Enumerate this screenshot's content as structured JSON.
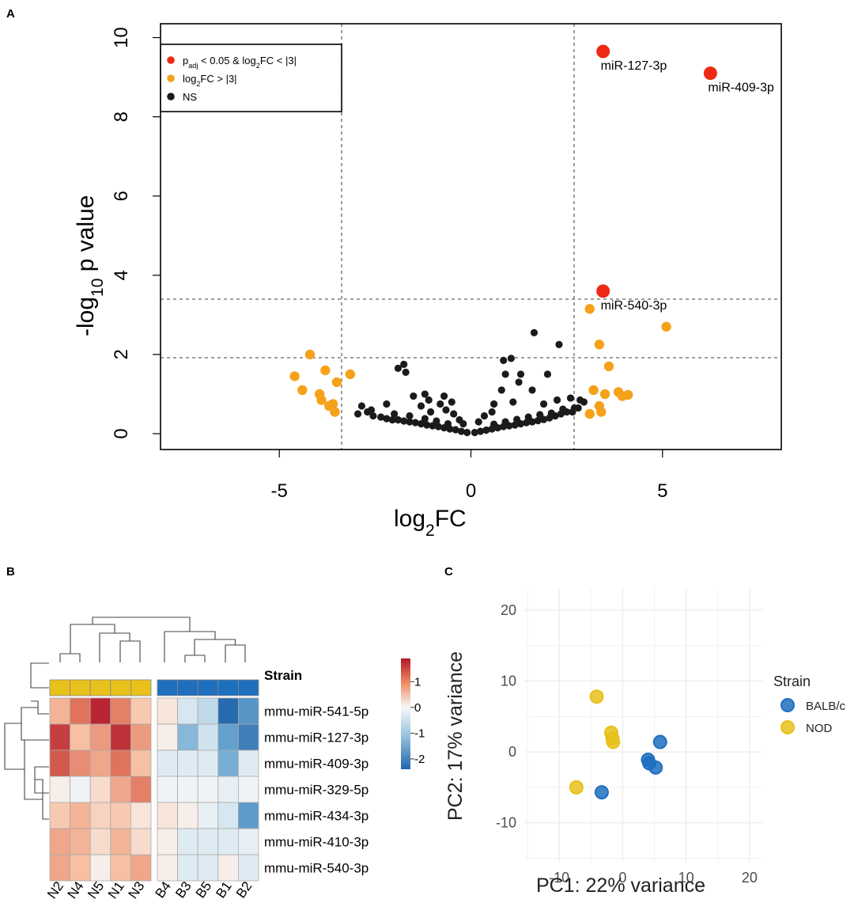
{
  "panel_labels": {
    "a": "A",
    "b": "B",
    "c": "C"
  },
  "chart_data": [
    {
      "id": "volcano",
      "type": "scatter",
      "title": "",
      "xlabel": "log2FC",
      "ylabel": "-log10 p value",
      "xlim": [
        -8.1,
        8.1
      ],
      "ylim": [
        -0.4,
        10.35
      ],
      "xticks": [
        -5,
        0,
        5
      ],
      "yticks": [
        0,
        2,
        4,
        6,
        8,
        10
      ],
      "thresholds": {
        "x": [
          -3,
          3
        ],
        "y": [
          2,
          3.5
        ]
      },
      "legend": {
        "placement": "top-left",
        "entries": [
          {
            "key": "sig",
            "label": "padj < 0.05 & log2FC < |3|",
            "color": "#ee2a14"
          },
          {
            "key": "fc",
            "label": "log2FC > |3|",
            "color": "#f5a21a"
          },
          {
            "key": "ns",
            "label": "NS",
            "color": "#1b1b1b"
          }
        ]
      },
      "annotations": [
        {
          "text": "miR-127-3p",
          "x": 3.45,
          "y": 9.65
        },
        {
          "text": "miR-409-3p",
          "x": 6.25,
          "y": 9.1
        },
        {
          "text": "miR-540-3p",
          "x": 3.45,
          "y": 3.6
        }
      ],
      "series": [
        {
          "name": "padj < 0.05 & log2FC < |3|",
          "color": "#ee2a14",
          "points": [
            [
              3.45,
              9.65
            ],
            [
              6.25,
              9.1
            ],
            [
              3.45,
              3.6
            ]
          ]
        },
        {
          "name": "log2FC > |3|",
          "color": "#f5a21a",
          "points": [
            [
              3.1,
              3.15
            ],
            [
              3.35,
              2.25
            ],
            [
              5.1,
              2.7
            ],
            [
              3.6,
              1.7
            ],
            [
              3.2,
              1.1
            ],
            [
              3.5,
              1.0
            ],
            [
              3.85,
              1.05
            ],
            [
              4.1,
              0.98
            ],
            [
              3.35,
              0.7
            ],
            [
              3.1,
              0.5
            ],
            [
              3.4,
              0.55
            ],
            [
              3.95,
              0.95
            ],
            [
              -4.2,
              2.0
            ],
            [
              -4.6,
              1.45
            ],
            [
              -4.4,
              1.1
            ],
            [
              -3.8,
              1.6
            ],
            [
              -3.5,
              1.3
            ],
            [
              -3.95,
              1.0
            ],
            [
              -3.9,
              0.85
            ],
            [
              -3.7,
              0.7
            ],
            [
              -3.55,
              0.55
            ],
            [
              -3.15,
              1.5
            ],
            [
              -3.6,
              0.75
            ]
          ]
        },
        {
          "name": "NS",
          "color": "#1b1b1b",
          "points": [
            [
              -2.95,
              0.5
            ],
            [
              -2.85,
              0.7
            ],
            [
              -2.7,
              0.55
            ],
            [
              -2.55,
              0.45
            ],
            [
              -2.35,
              0.42
            ],
            [
              -2.2,
              0.38
            ],
            [
              -2.05,
              0.35
            ],
            [
              -1.9,
              0.35
            ],
            [
              -1.75,
              0.32
            ],
            [
              -1.6,
              0.3
            ],
            [
              -1.45,
              0.28
            ],
            [
              -1.3,
              0.25
            ],
            [
              -1.15,
              0.22
            ],
            [
              -1.0,
              0.2
            ],
            [
              -0.85,
              0.18
            ],
            [
              -0.7,
              0.15
            ],
            [
              -0.55,
              0.12
            ],
            [
              -0.4,
              0.1
            ],
            [
              -0.25,
              0.06
            ],
            [
              -0.1,
              0.03
            ],
            [
              0.1,
              0.03
            ],
            [
              0.25,
              0.06
            ],
            [
              0.4,
              0.09
            ],
            [
              0.55,
              0.12
            ],
            [
              0.7,
              0.15
            ],
            [
              0.85,
              0.18
            ],
            [
              1.0,
              0.2
            ],
            [
              1.15,
              0.22
            ],
            [
              1.3,
              0.25
            ],
            [
              1.45,
              0.28
            ],
            [
              1.6,
              0.3
            ],
            [
              1.75,
              0.33
            ],
            [
              1.9,
              0.36
            ],
            [
              2.05,
              0.4
            ],
            [
              2.2,
              0.45
            ],
            [
              2.35,
              0.5
            ],
            [
              2.5,
              0.55
            ],
            [
              2.65,
              0.55
            ],
            [
              2.8,
              0.65
            ],
            [
              2.95,
              0.8
            ],
            [
              -2.6,
              0.6
            ],
            [
              -2.0,
              0.5
            ],
            [
              -1.6,
              0.45
            ],
            [
              -1.2,
              0.38
            ],
            [
              -0.9,
              0.32
            ],
            [
              -0.6,
              0.25
            ],
            [
              0.6,
              0.24
            ],
            [
              0.9,
              0.3
            ],
            [
              1.2,
              0.36
            ],
            [
              1.5,
              0.42
            ],
            [
              1.8,
              0.48
            ],
            [
              2.1,
              0.52
            ],
            [
              2.4,
              0.62
            ],
            [
              -1.9,
              1.65
            ],
            [
              -1.7,
              1.55
            ],
            [
              -1.75,
              1.75
            ],
            [
              -1.2,
              1.0
            ],
            [
              -1.1,
              0.85
            ],
            [
              -0.8,
              0.75
            ],
            [
              -0.7,
              0.95
            ],
            [
              -0.65,
              0.6
            ],
            [
              -0.5,
              0.8
            ],
            [
              -0.45,
              0.5
            ],
            [
              -1.5,
              0.95
            ],
            [
              -1.3,
              0.7
            ],
            [
              -2.2,
              0.75
            ],
            [
              0.85,
              1.85
            ],
            [
              1.05,
              1.9
            ],
            [
              0.9,
              1.5
            ],
            [
              1.3,
              1.5
            ],
            [
              1.65,
              2.55
            ],
            [
              2.3,
              2.25
            ],
            [
              2.0,
              1.5
            ],
            [
              1.6,
              1.1
            ],
            [
              1.25,
              1.3
            ],
            [
              0.8,
              1.1
            ],
            [
              0.6,
              0.75
            ],
            [
              0.55,
              0.55
            ],
            [
              1.1,
              0.8
            ],
            [
              2.6,
              0.9
            ],
            [
              2.85,
              0.85
            ],
            [
              2.7,
              0.65
            ],
            [
              0.35,
              0.45
            ],
            [
              -0.3,
              0.35
            ],
            [
              -1.05,
              0.55
            ],
            [
              1.9,
              0.75
            ],
            [
              2.25,
              0.85
            ],
            [
              0.2,
              0.3
            ],
            [
              -0.2,
              0.25
            ]
          ]
        }
      ]
    },
    {
      "id": "heatmap",
      "type": "heatmap",
      "title": "",
      "columns": [
        "N2",
        "N4",
        "N5",
        "N1",
        "N3",
        "B4",
        "B3",
        "B5",
        "B1",
        "B2"
      ],
      "rows": [
        "mmu-miR-541-5p",
        "mmu-miR-127-3p",
        "mmu-miR-409-3p",
        "mmu-miR-329-5p",
        "mmu-miR-434-3p",
        "mmu-miR-410-3p",
        "mmu-miR-540-3p"
      ],
      "annotation_label": "Strain",
      "strain_colors": [
        "#e8c11b",
        "#e8c11b",
        "#e8c11b",
        "#e8c11b",
        "#e8c11b",
        "#1f6fbf",
        "#1f6fbf",
        "#1f6fbf",
        "#1f6fbf",
        "#1f6fbf"
      ],
      "values": [
        [
          0.7,
          1.2,
          1.8,
          1.1,
          0.5,
          0.2,
          -0.4,
          -0.6,
          -2.3,
          -1.5
        ],
        [
          1.6,
          0.6,
          0.9,
          1.7,
          0.9,
          0.1,
          -1.0,
          -0.5,
          -1.3,
          -1.9
        ],
        [
          1.4,
          1.0,
          0.8,
          1.2,
          0.6,
          -0.3,
          -0.3,
          -0.3,
          -1.1,
          -0.3
        ],
        [
          0.1,
          -0.1,
          0.3,
          0.8,
          1.1,
          -0.1,
          -0.1,
          -0.1,
          -0.2,
          -0.1
        ],
        [
          0.5,
          0.7,
          0.4,
          0.5,
          0.2,
          0.2,
          0.1,
          -0.2,
          -0.4,
          -1.4
        ],
        [
          0.8,
          0.7,
          0.3,
          0.7,
          0.3,
          0.1,
          -0.3,
          -0.3,
          -0.3,
          -0.2
        ],
        [
          0.8,
          0.6,
          0.1,
          0.6,
          0.8,
          0.1,
          -0.3,
          -0.3,
          0.1,
          -0.3
        ]
      ],
      "color_scale": {
        "min": -2.4,
        "max": 1.9,
        "ticks": [
          1,
          0,
          -1,
          -2
        ]
      }
    },
    {
      "id": "pca",
      "type": "scatter",
      "title": "",
      "xlabel": "PC1: 22% variance",
      "ylabel": "PC2: 17% variance",
      "xlim": [
        -15.5,
        22
      ],
      "ylim": [
        -15.5,
        23
      ],
      "xticks": [
        -10,
        0,
        10,
        20
      ],
      "yticks": [
        -10,
        0,
        10,
        20
      ],
      "legend": {
        "title": "Strain",
        "placement": "right"
      },
      "series": [
        {
          "name": "BALB/c",
          "color": "#1f6fbf",
          "points": [
            [
              5.9,
              1.4
            ],
            [
              4.0,
              -1.1
            ],
            [
              4.2,
              -1.6
            ],
            [
              5.2,
              -2.2
            ],
            [
              -3.3,
              -5.7
            ]
          ]
        },
        {
          "name": "NOD",
          "color": "#e8c11b",
          "points": [
            [
              -4.1,
              7.8
            ],
            [
              -1.8,
              2.7
            ],
            [
              -1.6,
              1.9
            ],
            [
              -1.5,
              1.4
            ],
            [
              -7.3,
              -5.0
            ]
          ]
        }
      ]
    }
  ]
}
